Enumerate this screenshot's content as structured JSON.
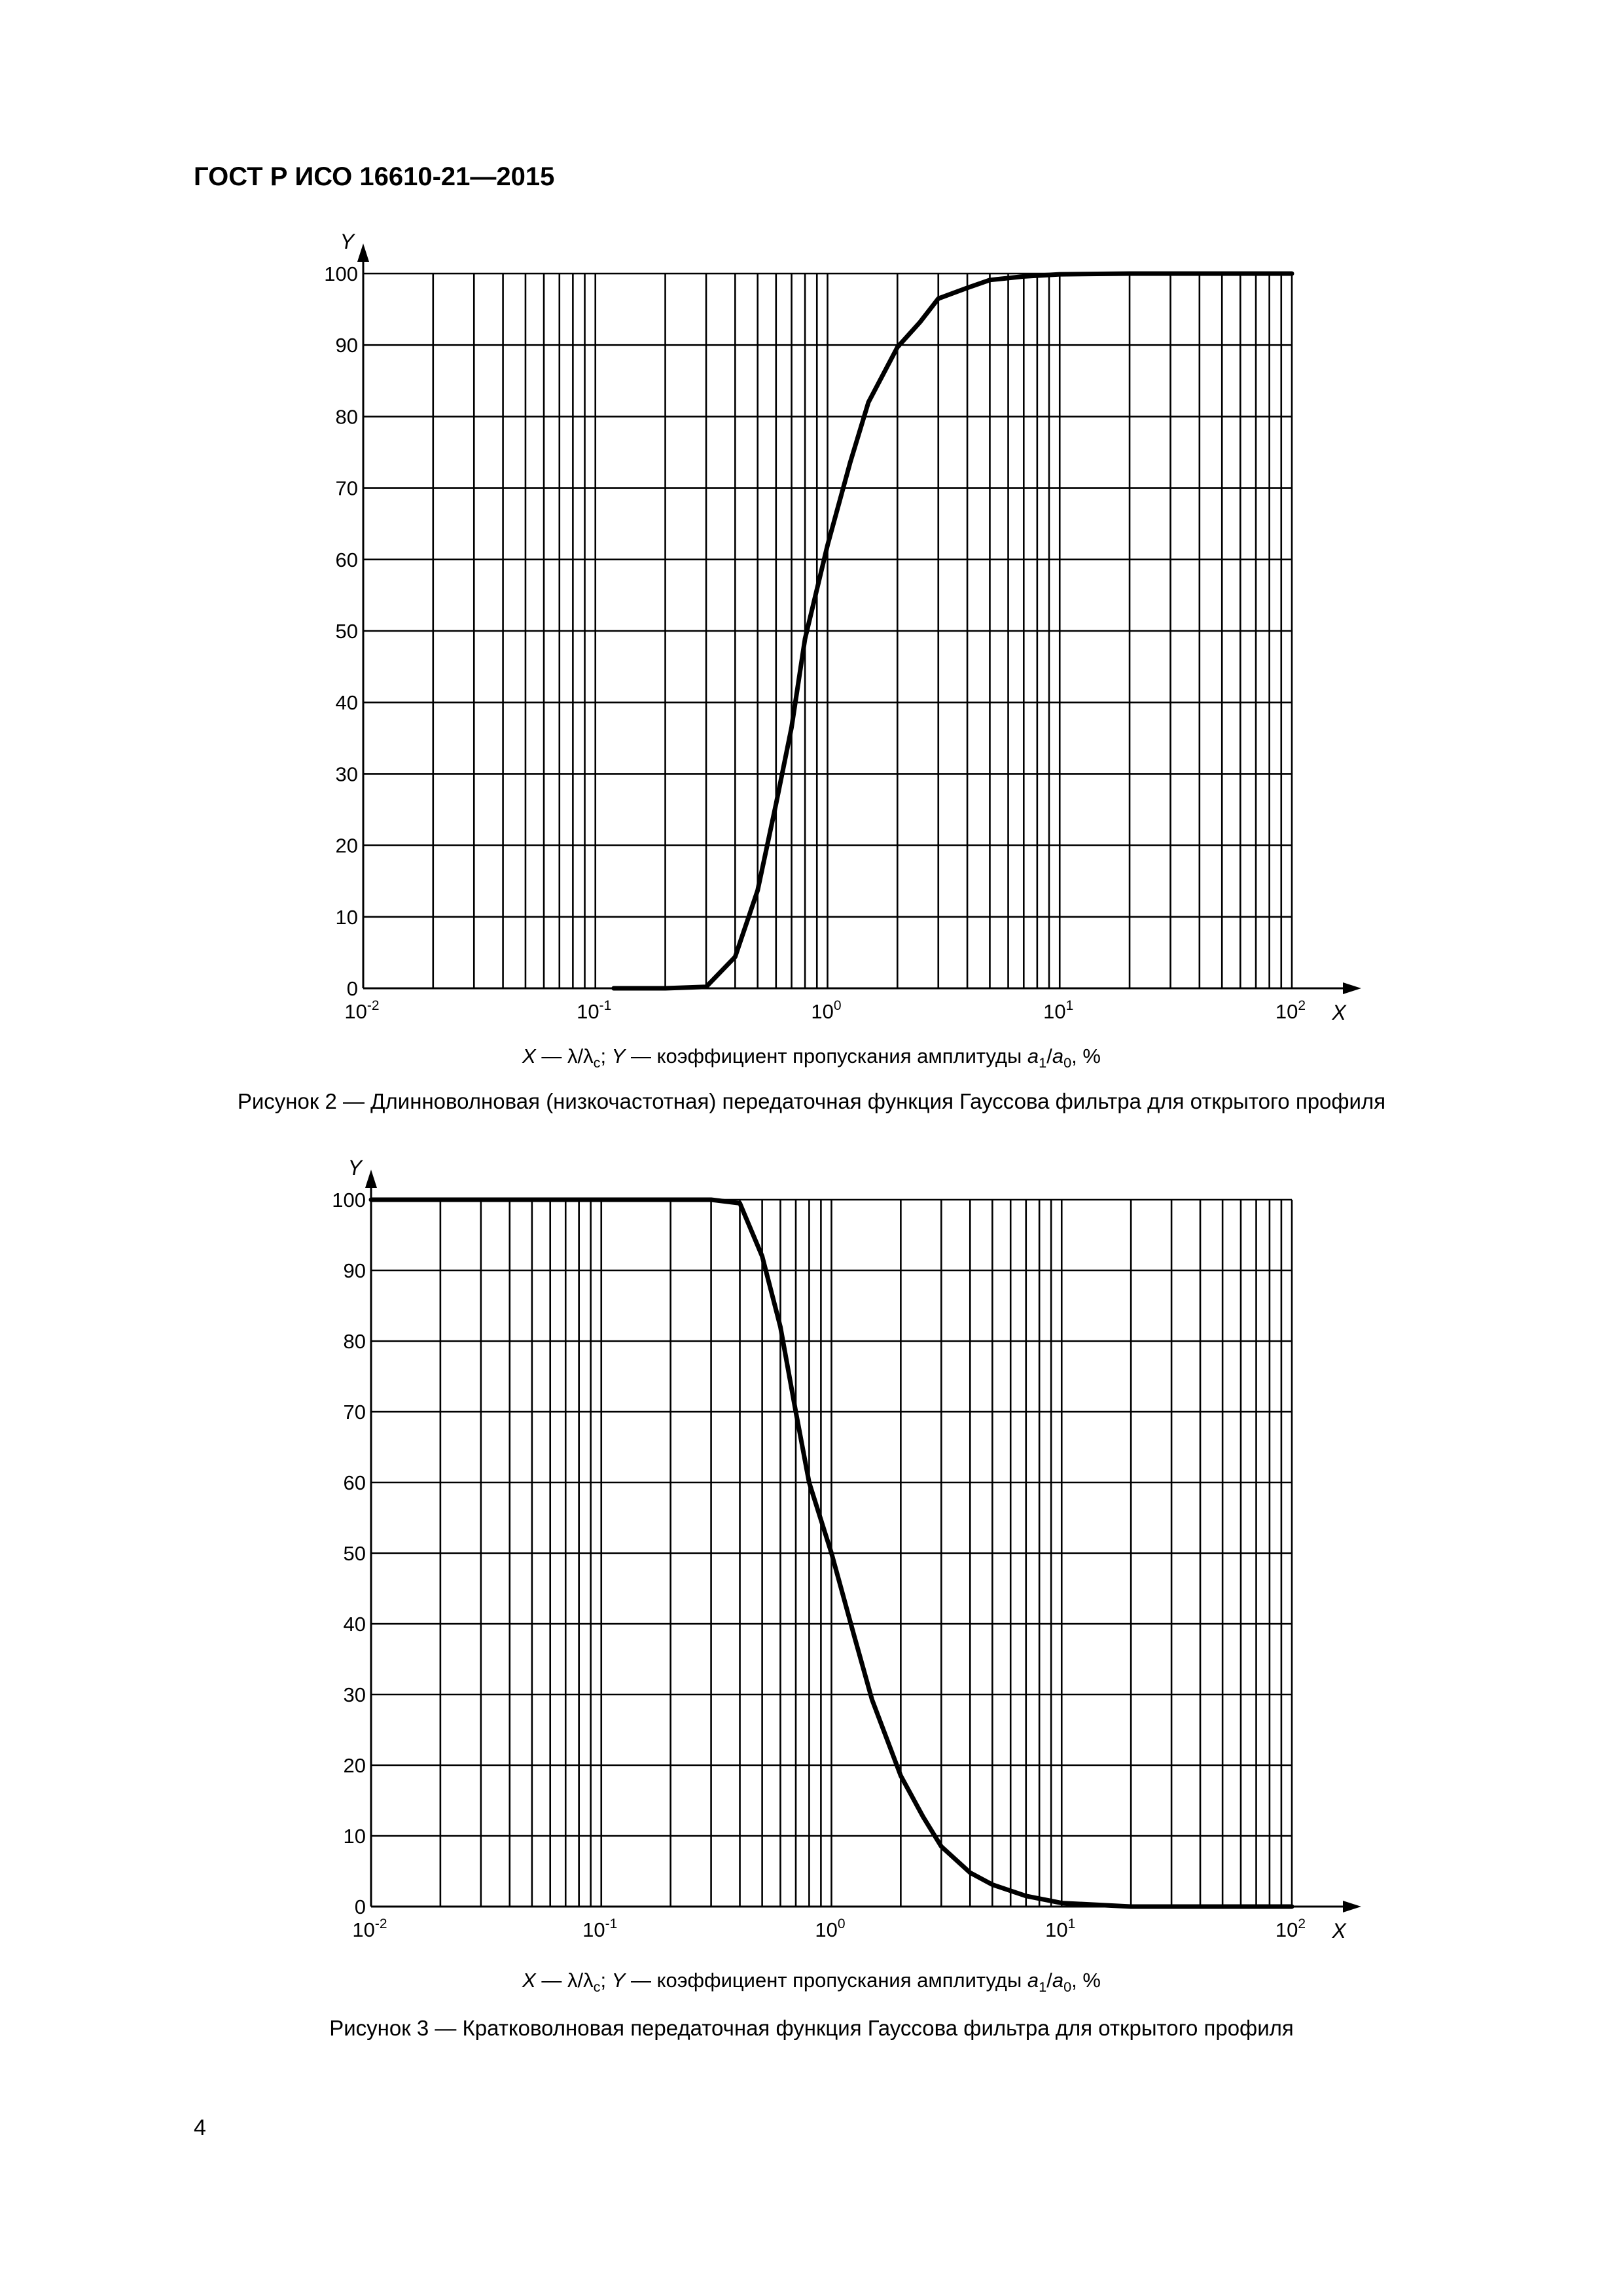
{
  "header": {
    "title": "ГОСТ Р ИСО 16610-21—2015"
  },
  "page": {
    "number": "4"
  },
  "figures": [
    {
      "legend": {
        "x_var": "X",
        "sep1": " — ",
        "x_def": "λ/λ",
        "x_def_sub": "c",
        "mid": "; ",
        "y_var": "Y",
        "y_def": " — коэффициент пропускания амплитуды ",
        "a1": "a",
        "a1_sub": "1",
        "slash": "/",
        "a0": "a",
        "a0_sub": "0",
        "unit": ", %"
      },
      "caption": "Рисунок 2 — Длинноволновая (низкочастотная) передаточная функция Гауссова фильтра для открытого профиля"
    },
    {
      "legend": {
        "x_var": "X",
        "sep1": " — ",
        "x_def": "λ/λ",
        "x_def_sub": "c",
        "mid": "; ",
        "y_var": "Y",
        "y_def": " — коэффициент пропускания амплитуды ",
        "a1": "a",
        "a1_sub": "1",
        "slash": "/",
        "a0": "a",
        "a0_sub": "0",
        "unit": ", %"
      },
      "caption": "Рисунок 3 — Кратковолновая передаточная функция Гауссова фильтра для открытого профиля"
    }
  ],
  "chart_data": [
    {
      "type": "line",
      "xscale": "log",
      "xlim": [
        0.01,
        100
      ],
      "ylim": [
        0,
        100
      ],
      "grid": true,
      "xlabel": "X",
      "ylabel": "Y",
      "xticks": [
        {
          "base": "10",
          "exp": "-2"
        },
        {
          "base": "10",
          "exp": "-1"
        },
        {
          "base": "10",
          "exp": "0"
        },
        {
          "base": "10",
          "exp": "1"
        },
        {
          "base": "10",
          "exp": "2"
        }
      ],
      "yticks": [
        "0",
        "10",
        "20",
        "30",
        "40",
        "50",
        "60",
        "70",
        "80",
        "90",
        "100"
      ],
      "series": [
        {
          "x": [
            0.12,
            0.2,
            0.3,
            0.4,
            0.5,
            0.6,
            0.7,
            0.8,
            1,
            1.25,
            1.5,
            2,
            2.5,
            3,
            4,
            5,
            7,
            10,
            20,
            50,
            100
          ],
          "y": [
            0,
            0,
            0.2,
            4.4,
            13.7,
            25.8,
            36.5,
            48.9,
            62.0,
            73.5,
            82.0,
            89.7,
            93.2,
            96.5,
            98.0,
            99.1,
            99.6,
            99.9,
            100,
            100,
            100
          ]
        }
      ]
    },
    {
      "type": "line",
      "xscale": "log",
      "xlim": [
        0.01,
        100
      ],
      "ylim": [
        0,
        100
      ],
      "grid": true,
      "xlabel": "X",
      "ylabel": "Y",
      "xticks": [
        {
          "base": "10",
          "exp": "-2"
        },
        {
          "base": "10",
          "exp": "-1"
        },
        {
          "base": "10",
          "exp": "0"
        },
        {
          "base": "10",
          "exp": "1"
        },
        {
          "base": "10",
          "exp": "2"
        }
      ],
      "yticks": [
        "0",
        "10",
        "20",
        "30",
        "40",
        "50",
        "60",
        "70",
        "80",
        "90",
        "100"
      ],
      "series": [
        {
          "x": [
            0.01,
            0.05,
            0.1,
            0.2,
            0.3,
            0.4,
            0.5,
            0.6,
            0.7,
            0.8,
            1,
            1.25,
            1.5,
            2,
            2.5,
            3,
            4,
            5,
            7,
            10,
            20,
            50,
            100
          ],
          "y": [
            100,
            100,
            100,
            100,
            100,
            99.5,
            92.0,
            82.0,
            70.0,
            60.0,
            50.0,
            38.5,
            29.3,
            18.5,
            12.7,
            8.5,
            4.8,
            3.1,
            1.5,
            0.5,
            0,
            0,
            0
          ]
        }
      ]
    }
  ]
}
